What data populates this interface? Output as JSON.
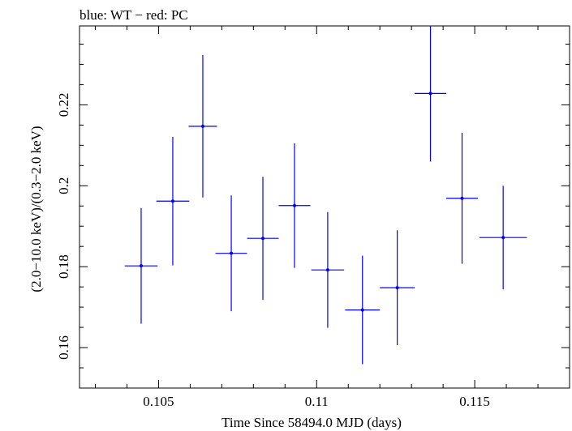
{
  "chart_data": {
    "type": "scatter",
    "title": "blue: WT − red: PC",
    "xlabel": "Time Since 58494.0 MJD (days)",
    "ylabel": "(2.0−10.0 keV)/(0.3−2.0 keV)",
    "xlim": [
      0.1025,
      0.118
    ],
    "ylim": [
      0.15,
      0.2395
    ],
    "x_ticks": [
      {
        "value": 0.105,
        "label": "0.105"
      },
      {
        "value": 0.11,
        "label": "0.11"
      },
      {
        "value": 0.115,
        "label": "0.115"
      }
    ],
    "y_ticks": [
      {
        "value": 0.16,
        "label": "0.16"
      },
      {
        "value": 0.18,
        "label": "0.18"
      },
      {
        "value": 0.2,
        "label": "0.2"
      },
      {
        "value": 0.22,
        "label": "0.22"
      }
    ],
    "series": [
      {
        "color": "#0000ff",
        "points": [
          {
            "x": 0.10445,
            "xerr": 0.00052,
            "y": 0.1802,
            "yerr": 0.0143
          },
          {
            "x": 0.10545,
            "xerr": 0.00052,
            "y": 0.1962,
            "yerr": 0.0159
          },
          {
            "x": 0.1064,
            "xerr": 0.00045,
            "y": 0.2147,
            "yerr": 0.0176
          },
          {
            "x": 0.1073,
            "xerr": 0.0005,
            "y": 0.1833,
            "yerr": 0.0143
          },
          {
            "x": 0.1083,
            "xerr": 0.0005,
            "y": 0.187,
            "yerr": 0.0152
          },
          {
            "x": 0.1093,
            "xerr": 0.0005,
            "y": 0.1951,
            "yerr": 0.0154
          },
          {
            "x": 0.11035,
            "xerr": 0.00052,
            "y": 0.1792,
            "yerr": 0.0143
          },
          {
            "x": 0.11145,
            "xerr": 0.00055,
            "y": 0.1693,
            "yerr": 0.0134
          },
          {
            "x": 0.11255,
            "xerr": 0.00055,
            "y": 0.1748,
            "yerr": 0.0142
          },
          {
            "x": 0.1136,
            "xerr": 0.0005,
            "y": 0.2228,
            "yerr": 0.0168
          },
          {
            "x": 0.1146,
            "xerr": 0.0005,
            "y": 0.1969,
            "yerr": 0.0162
          },
          {
            "x": 0.1159,
            "xerr": 0.00075,
            "y": 0.1872,
            "yerr": 0.0128
          }
        ]
      }
    ]
  }
}
